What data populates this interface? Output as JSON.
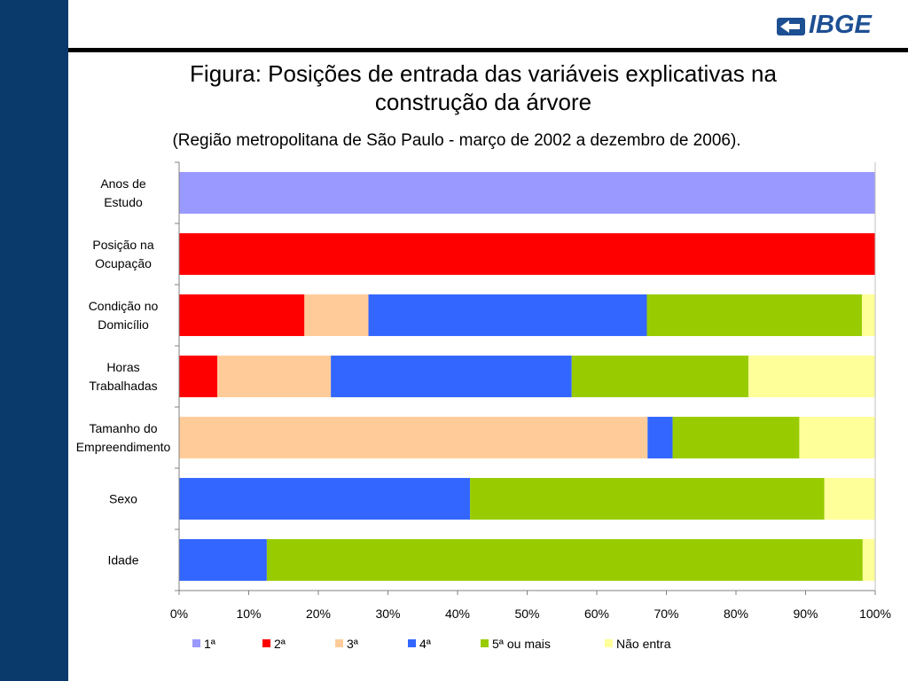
{
  "header": {
    "logo_text": "IBGE",
    "title_line1": "Figura: Posições de entrada das variáveis explicativas na",
    "title_line2": "construção da árvore",
    "subtitle": "(Região metropolitana de São Paulo - março de 2002 a dezembro de 2006)."
  },
  "colors": {
    "sidebar": "#0a3a6c",
    "rule": "#000000",
    "logo": "#1d4f93"
  },
  "icons": {
    "logo": "ibge-logo-icon"
  },
  "chart_data": {
    "type": "bar",
    "orientation": "horizontal",
    "stacked": "percent",
    "categories": [
      [
        "Anos de",
        "Estudo"
      ],
      [
        "Posição na",
        "Ocupação"
      ],
      [
        "Condição no",
        "Domicílio"
      ],
      [
        "Horas",
        "Trabalhadas"
      ],
      [
        "Tamanho do",
        "Empreendimento"
      ],
      [
        "Sexo"
      ],
      [
        "Idade"
      ]
    ],
    "series": [
      {
        "name": "1ª",
        "color": "#9999ff",
        "values": [
          100,
          0,
          0,
          0,
          0,
          0,
          0
        ]
      },
      {
        "name": "2ª",
        "color": "#ff0000",
        "values": [
          0,
          100,
          18,
          5.5,
          0,
          0,
          0
        ]
      },
      {
        "name": "3ª",
        "color": "#ffcc99",
        "values": [
          0,
          0,
          9.2,
          16.3,
          67.3,
          0,
          0
        ]
      },
      {
        "name": "4ª",
        "color": "#3366ff",
        "values": [
          0,
          0,
          40,
          34.6,
          3.6,
          41.8,
          12.6
        ]
      },
      {
        "name": "5ª ou mais",
        "color": "#99cc00",
        "values": [
          0,
          0,
          30.9,
          25.4,
          18.2,
          50.9,
          85.6
        ]
      },
      {
        "name": "Não entra",
        "color": "#ffff99",
        "values": [
          0,
          0,
          1.9,
          18.2,
          10.9,
          7.3,
          1.8
        ]
      }
    ],
    "xlim": [
      0,
      100
    ],
    "xticks": [
      "0%",
      "10%",
      "20%",
      "30%",
      "40%",
      "50%",
      "60%",
      "70%",
      "80%",
      "90%",
      "100%"
    ],
    "grid": false,
    "legend": "bottom"
  }
}
